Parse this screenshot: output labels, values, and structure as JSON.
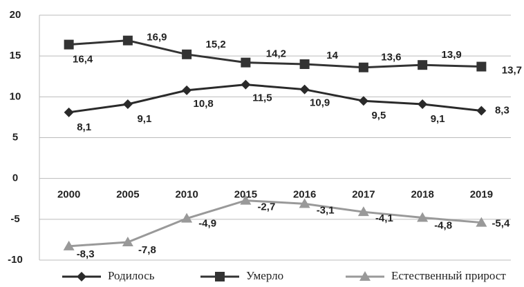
{
  "chart_data": {
    "type": "line",
    "categories": [
      "2000",
      "2005",
      "2010",
      "2015",
      "2016",
      "2017",
      "2018",
      "2019"
    ],
    "series": [
      {
        "name": "Родилось",
        "color": "#2a2a2a",
        "marker": "diamond",
        "values": [
          8.1,
          9.1,
          10.8,
          11.5,
          10.9,
          9.5,
          9.1,
          8.3
        ],
        "value_labels": [
          "8,1",
          "9,1",
          "10,8",
          "11,5",
          "10,9",
          "9,5",
          "9,1",
          "8,3"
        ]
      },
      {
        "name": "Умерло",
        "color": "#333333",
        "marker": "square",
        "values": [
          16.4,
          16.9,
          15.2,
          14.2,
          14,
          13.6,
          13.9,
          13.7
        ],
        "value_labels": [
          "16,4",
          "16,9",
          "15,2",
          "14,2",
          "14",
          "13,6",
          "13,9",
          "13,7"
        ]
      },
      {
        "name": "Естественный прирост",
        "color": "#999999",
        "marker": "triangle",
        "values": [
          -8.3,
          -7.8,
          -4.9,
          -2.7,
          -3.1,
          -4.1,
          -4.8,
          -5.4
        ],
        "value_labels": [
          "-8,3",
          "-7,8",
          "-4,9",
          "-2,7",
          "-3,1",
          "-4,1",
          "-4,8",
          "-5,4"
        ]
      }
    ],
    "ylim": [
      -10,
      20
    ],
    "yticks": [
      20,
      15,
      10,
      5,
      0,
      -5,
      -10
    ],
    "grid": true
  }
}
